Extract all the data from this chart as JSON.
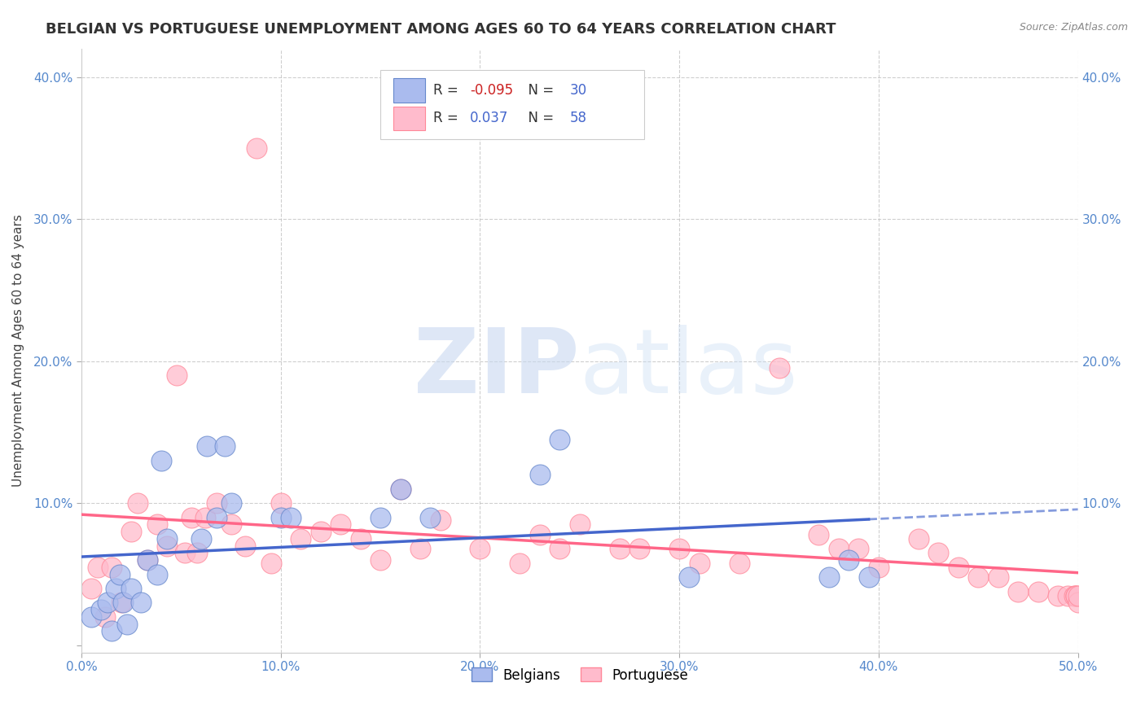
{
  "title": "BELGIAN VS PORTUGUESE UNEMPLOYMENT AMONG AGES 60 TO 64 YEARS CORRELATION CHART",
  "source": "Source: ZipAtlas.com",
  "ylabel": "Unemployment Among Ages 60 to 64 years",
  "xlim": [
    0.0,
    0.5
  ],
  "ylim": [
    -0.005,
    0.42
  ],
  "xticks": [
    0.0,
    0.1,
    0.2,
    0.3,
    0.4,
    0.5
  ],
  "xtick_labels": [
    "0.0%",
    "10.0%",
    "20.0%",
    "30.0%",
    "40.0%",
    "50.0%"
  ],
  "yticks": [
    0.0,
    0.1,
    0.2,
    0.3,
    0.4
  ],
  "ytick_labels": [
    "",
    "10.0%",
    "20.0%",
    "30.0%",
    "40.0%"
  ],
  "belgians_x": [
    0.005,
    0.01,
    0.013,
    0.015,
    0.017,
    0.019,
    0.021,
    0.023,
    0.025,
    0.03,
    0.033,
    0.038,
    0.04,
    0.043,
    0.06,
    0.063,
    0.068,
    0.072,
    0.075,
    0.1,
    0.105,
    0.15,
    0.16,
    0.175,
    0.23,
    0.24,
    0.305,
    0.375,
    0.385,
    0.395
  ],
  "belgians_y": [
    0.02,
    0.025,
    0.03,
    0.01,
    0.04,
    0.05,
    0.03,
    0.015,
    0.04,
    0.03,
    0.06,
    0.05,
    0.13,
    0.075,
    0.075,
    0.14,
    0.09,
    0.14,
    0.1,
    0.09,
    0.09,
    0.09,
    0.11,
    0.09,
    0.12,
    0.145,
    0.048,
    0.048,
    0.06,
    0.048
  ],
  "portuguese_x": [
    0.005,
    0.008,
    0.012,
    0.015,
    0.02,
    0.025,
    0.028,
    0.033,
    0.038,
    0.043,
    0.048,
    0.052,
    0.055,
    0.058,
    0.062,
    0.068,
    0.075,
    0.082,
    0.088,
    0.095,
    0.1,
    0.11,
    0.12,
    0.13,
    0.14,
    0.15,
    0.16,
    0.17,
    0.18,
    0.2,
    0.22,
    0.23,
    0.24,
    0.25,
    0.27,
    0.28,
    0.3,
    0.31,
    0.33,
    0.35,
    0.37,
    0.38,
    0.39,
    0.4,
    0.42,
    0.43,
    0.44,
    0.45,
    0.46,
    0.47,
    0.48,
    0.49,
    0.495,
    0.498,
    0.499,
    0.499,
    0.5,
    0.5
  ],
  "portuguese_y": [
    0.04,
    0.055,
    0.02,
    0.055,
    0.03,
    0.08,
    0.1,
    0.06,
    0.085,
    0.07,
    0.19,
    0.065,
    0.09,
    0.065,
    0.09,
    0.1,
    0.085,
    0.07,
    0.35,
    0.058,
    0.1,
    0.075,
    0.08,
    0.085,
    0.075,
    0.06,
    0.11,
    0.068,
    0.088,
    0.068,
    0.058,
    0.078,
    0.068,
    0.085,
    0.068,
    0.068,
    0.068,
    0.058,
    0.058,
    0.195,
    0.078,
    0.068,
    0.068,
    0.055,
    0.075,
    0.065,
    0.055,
    0.048,
    0.048,
    0.038,
    0.038,
    0.035,
    0.035,
    0.035,
    0.035,
    0.035,
    0.03,
    0.035
  ],
  "belgian_color": "#AABBEE",
  "portuguese_color": "#FFBBCC",
  "belgian_edge_color": "#6688CC",
  "portuguese_edge_color": "#FF8899",
  "belgian_line_color": "#4466CC",
  "portuguese_line_color": "#FF6688",
  "belgian_R": -0.095,
  "belgian_N": 30,
  "portuguese_R": 0.037,
  "portuguese_N": 58,
  "watermark_zip": "ZIP",
  "watermark_atlas": "atlas",
  "background_color": "#FFFFFF",
  "grid_color": "#BBBBBB",
  "marker_size": 18,
  "legend_r_color": "#CC0000",
  "legend_n_color": "#4466CC"
}
